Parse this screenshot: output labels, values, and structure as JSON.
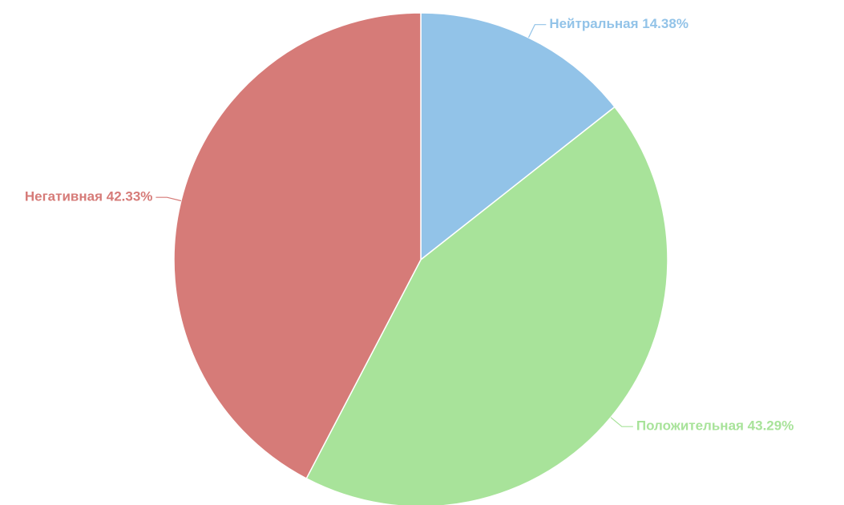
{
  "chart_data": {
    "type": "pie",
    "values": [
      14.38,
      43.29,
      42.33
    ],
    "value_labels": [
      "Нейтральная 14.38%",
      "Положительная 43.29%",
      "Негативная 42.33%"
    ],
    "colors": [
      "#92c3e8",
      "#a8e39a",
      "#d67b78"
    ]
  }
}
